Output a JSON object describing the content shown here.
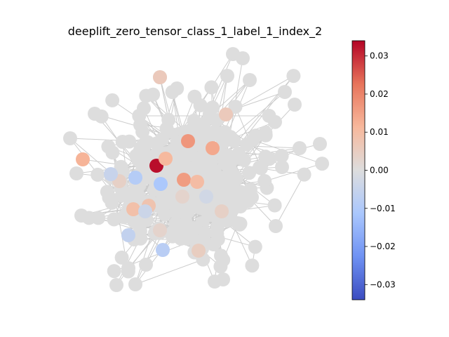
{
  "chart_data": {
    "type": "scatter",
    "subtype": "network-graph",
    "title": "deeplift_zero_tensor_class_1_label_1_index_2",
    "colormap": "coolwarm",
    "colormap_stops": [
      "#3b4cc0",
      "#6f92f3",
      "#aac7fd",
      "#dddddd",
      "#f7b89c",
      "#e7745b",
      "#b40426"
    ],
    "default_node_color": "#dddddd",
    "edge_color": "#cccccc",
    "node_count_estimate": 380,
    "colorbar": {
      "vmin": -0.034,
      "vmax": 0.034,
      "ticks": [
        0.03,
        0.02,
        0.01,
        0.0,
        -0.01,
        -0.02,
        -0.03
      ],
      "tick_labels": [
        "0.03",
        "0.02",
        "0.01",
        "0.00",
        "−0.01",
        "−0.02",
        "−0.03"
      ]
    },
    "highlighted_nodes": [
      {
        "value": 0.033
      },
      {
        "value": 0.017
      },
      {
        "value": 0.016
      },
      {
        "value": 0.014
      },
      {
        "value": 0.012
      },
      {
        "value": 0.011
      },
      {
        "value": 0.01
      },
      {
        "value": 0.009
      },
      {
        "value": 0.008
      },
      {
        "value": 0.006
      },
      {
        "value": 0.006
      },
      {
        "value": 0.005
      },
      {
        "value": 0.004
      },
      {
        "value": 0.004
      },
      {
        "value": 0.003
      },
      {
        "value": 0.003
      },
      {
        "value": -0.003
      },
      {
        "value": -0.004
      },
      {
        "value": -0.005
      },
      {
        "value": -0.006
      },
      {
        "value": -0.008
      },
      {
        "value": -0.009
      },
      {
        "value": -0.011
      }
    ]
  }
}
